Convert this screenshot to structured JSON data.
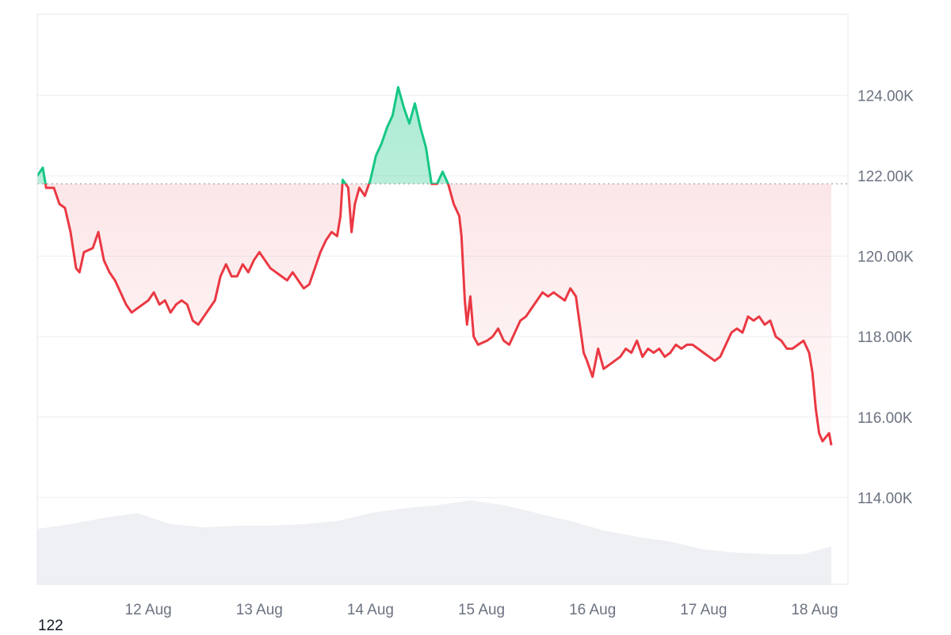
{
  "chart_data": {
    "type": "line",
    "y_unit_label": "K",
    "ylim": [
      112.0,
      126.0
    ],
    "y_ticks": [
      {
        "value": 124,
        "label": "124.00K"
      },
      {
        "value": 122,
        "label": "122.00K"
      },
      {
        "value": 120,
        "label": "120.00K"
      },
      {
        "value": 118,
        "label": "118.00K"
      },
      {
        "value": 116,
        "label": "116.00K"
      },
      {
        "value": 114,
        "label": "114.00K"
      }
    ],
    "x_ticks": [
      {
        "day": 1,
        "label": "12 Aug"
      },
      {
        "day": 2,
        "label": "13 Aug"
      },
      {
        "day": 3,
        "label": "14 Aug"
      },
      {
        "day": 4,
        "label": "15 Aug"
      },
      {
        "day": 5,
        "label": "16 Aug"
      },
      {
        "day": 6,
        "label": "17 Aug"
      },
      {
        "day": 7,
        "label": "18 Aug"
      }
    ],
    "xlim": [
      0.0,
      7.3
    ],
    "baseline": 121.8,
    "colors": {
      "above": "#16c784",
      "below": "#ea3943",
      "volume": "#eef0f3"
    },
    "series": [
      {
        "values": [
          [
            0.0,
            122.0
          ],
          [
            0.05,
            122.2
          ],
          [
            0.08,
            121.7
          ],
          [
            0.15,
            121.7
          ],
          [
            0.2,
            121.3
          ],
          [
            0.25,
            121.2
          ],
          [
            0.3,
            120.6
          ],
          [
            0.35,
            119.7
          ],
          [
            0.38,
            119.6
          ],
          [
            0.42,
            120.1
          ],
          [
            0.5,
            120.2
          ],
          [
            0.55,
            120.6
          ],
          [
            0.6,
            119.9
          ],
          [
            0.65,
            119.6
          ],
          [
            0.7,
            119.4
          ],
          [
            0.75,
            119.1
          ],
          [
            0.8,
            118.8
          ],
          [
            0.85,
            118.6
          ],
          [
            0.9,
            118.7
          ],
          [
            1.0,
            118.9
          ],
          [
            1.05,
            119.1
          ],
          [
            1.1,
            118.8
          ],
          [
            1.15,
            118.9
          ],
          [
            1.2,
            118.6
          ],
          [
            1.25,
            118.8
          ],
          [
            1.3,
            118.9
          ],
          [
            1.35,
            118.8
          ],
          [
            1.4,
            118.4
          ],
          [
            1.45,
            118.3
          ],
          [
            1.5,
            118.5
          ],
          [
            1.55,
            118.7
          ],
          [
            1.6,
            118.9
          ],
          [
            1.65,
            119.5
          ],
          [
            1.7,
            119.8
          ],
          [
            1.75,
            119.5
          ],
          [
            1.8,
            119.5
          ],
          [
            1.85,
            119.8
          ],
          [
            1.9,
            119.6
          ],
          [
            1.95,
            119.9
          ],
          [
            2.0,
            120.1
          ],
          [
            2.05,
            119.9
          ],
          [
            2.1,
            119.7
          ],
          [
            2.15,
            119.6
          ],
          [
            2.2,
            119.5
          ],
          [
            2.25,
            119.4
          ],
          [
            2.3,
            119.6
          ],
          [
            2.35,
            119.4
          ],
          [
            2.4,
            119.2
          ],
          [
            2.45,
            119.3
          ],
          [
            2.5,
            119.7
          ],
          [
            2.55,
            120.1
          ],
          [
            2.6,
            120.4
          ],
          [
            2.65,
            120.6
          ],
          [
            2.7,
            120.5
          ],
          [
            2.73,
            121.0
          ],
          [
            2.75,
            121.9
          ],
          [
            2.8,
            121.7
          ],
          [
            2.83,
            120.6
          ],
          [
            2.86,
            121.3
          ],
          [
            2.9,
            121.7
          ],
          [
            2.95,
            121.5
          ],
          [
            3.0,
            121.9
          ],
          [
            3.05,
            122.5
          ],
          [
            3.1,
            122.8
          ],
          [
            3.15,
            123.2
          ],
          [
            3.2,
            123.5
          ],
          [
            3.25,
            124.2
          ],
          [
            3.3,
            123.7
          ],
          [
            3.35,
            123.3
          ],
          [
            3.4,
            123.8
          ],
          [
            3.45,
            123.2
          ],
          [
            3.5,
            122.7
          ],
          [
            3.55,
            121.8
          ],
          [
            3.6,
            121.8
          ],
          [
            3.65,
            122.1
          ],
          [
            3.7,
            121.8
          ],
          [
            3.75,
            121.3
          ],
          [
            3.8,
            121.0
          ],
          [
            3.82,
            120.5
          ],
          [
            3.85,
            118.9
          ],
          [
            3.87,
            118.3
          ],
          [
            3.9,
            119.0
          ],
          [
            3.93,
            118.0
          ],
          [
            3.97,
            117.8
          ],
          [
            4.05,
            117.9
          ],
          [
            4.1,
            118.0
          ],
          [
            4.15,
            118.2
          ],
          [
            4.2,
            117.9
          ],
          [
            4.25,
            117.8
          ],
          [
            4.3,
            118.1
          ],
          [
            4.35,
            118.4
          ],
          [
            4.4,
            118.5
          ],
          [
            4.45,
            118.7
          ],
          [
            4.5,
            118.9
          ],
          [
            4.55,
            119.1
          ],
          [
            4.6,
            119.0
          ],
          [
            4.65,
            119.1
          ],
          [
            4.7,
            119.0
          ],
          [
            4.75,
            118.9
          ],
          [
            4.8,
            119.2
          ],
          [
            4.85,
            119.0
          ],
          [
            4.88,
            118.4
          ],
          [
            4.92,
            117.6
          ],
          [
            4.95,
            117.4
          ],
          [
            5.0,
            117.0
          ],
          [
            5.05,
            117.7
          ],
          [
            5.1,
            117.2
          ],
          [
            5.15,
            117.3
          ],
          [
            5.2,
            117.4
          ],
          [
            5.25,
            117.5
          ],
          [
            5.3,
            117.7
          ],
          [
            5.35,
            117.6
          ],
          [
            5.4,
            117.9
          ],
          [
            5.45,
            117.5
          ],
          [
            5.5,
            117.7
          ],
          [
            5.55,
            117.6
          ],
          [
            5.6,
            117.7
          ],
          [
            5.65,
            117.5
          ],
          [
            5.7,
            117.6
          ],
          [
            5.75,
            117.8
          ],
          [
            5.8,
            117.7
          ],
          [
            5.85,
            117.8
          ],
          [
            5.9,
            117.8
          ],
          [
            5.95,
            117.7
          ],
          [
            6.0,
            117.6
          ],
          [
            6.05,
            117.5
          ],
          [
            6.1,
            117.4
          ],
          [
            6.15,
            117.5
          ],
          [
            6.2,
            117.8
          ],
          [
            6.25,
            118.1
          ],
          [
            6.3,
            118.2
          ],
          [
            6.35,
            118.1
          ],
          [
            6.4,
            118.5
          ],
          [
            6.45,
            118.4
          ],
          [
            6.5,
            118.5
          ],
          [
            6.55,
            118.3
          ],
          [
            6.6,
            118.4
          ],
          [
            6.65,
            118.0
          ],
          [
            6.7,
            117.9
          ],
          [
            6.75,
            117.7
          ],
          [
            6.8,
            117.7
          ],
          [
            6.85,
            117.8
          ],
          [
            6.9,
            117.9
          ],
          [
            6.95,
            117.6
          ],
          [
            6.98,
            117.1
          ],
          [
            7.01,
            116.2
          ],
          [
            7.04,
            115.6
          ],
          [
            7.07,
            115.4
          ],
          [
            7.1,
            115.5
          ],
          [
            7.13,
            115.6
          ],
          [
            7.15,
            115.3
          ]
        ]
      }
    ],
    "volume_profile": [
      [
        0.0,
        0.35
      ],
      [
        0.3,
        0.38
      ],
      [
        0.6,
        0.42
      ],
      [
        0.9,
        0.45
      ],
      [
        1.2,
        0.38
      ],
      [
        1.5,
        0.36
      ],
      [
        1.8,
        0.37
      ],
      [
        2.1,
        0.37
      ],
      [
        2.4,
        0.38
      ],
      [
        2.7,
        0.4
      ],
      [
        3.0,
        0.45
      ],
      [
        3.3,
        0.48
      ],
      [
        3.6,
        0.5
      ],
      [
        3.9,
        0.53
      ],
      [
        4.2,
        0.5
      ],
      [
        4.5,
        0.45
      ],
      [
        4.8,
        0.4
      ],
      [
        5.1,
        0.34
      ],
      [
        5.4,
        0.3
      ],
      [
        5.7,
        0.27
      ],
      [
        6.0,
        0.22
      ],
      [
        6.3,
        0.2
      ],
      [
        6.6,
        0.19
      ],
      [
        6.9,
        0.19
      ],
      [
        7.15,
        0.24
      ]
    ]
  },
  "footer_label": "122"
}
